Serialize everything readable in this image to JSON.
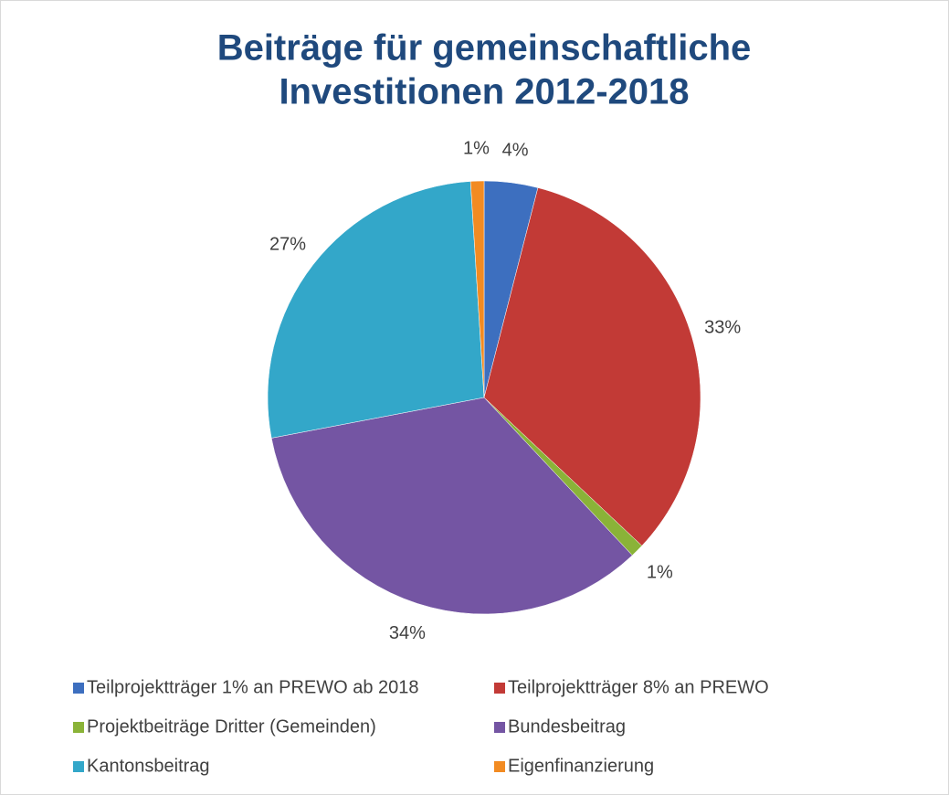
{
  "chart_data": {
    "type": "pie",
    "title": [
      "Beiträge für gemeinschaftliche",
      "Investitionen 2012-2018"
    ],
    "categories": [
      "Teilprojektträger 1% an PREWO ab 2018",
      "Teilprojektträger 8% an PREWO",
      "Projektbeiträge Dritter (Gemeinden)",
      "Bundesbeitrag",
      "Kantonsbeitrag",
      "Eigenfinanzierung"
    ],
    "values": [
      4,
      33,
      1,
      34,
      27,
      1
    ],
    "value_labels": [
      "4%",
      "33%",
      "1%",
      "34%",
      "27%",
      "1%"
    ],
    "colors": [
      "#3d6fbf",
      "#c23a36",
      "#8ab338",
      "#7455a3",
      "#33a7c9",
      "#f28b22"
    ],
    "legend": "bottom"
  }
}
